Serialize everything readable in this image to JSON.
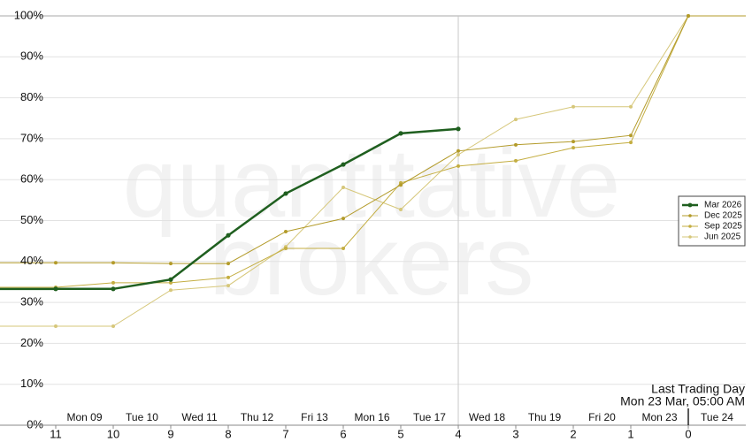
{
  "chart_data": {
    "type": "line",
    "watermark": [
      "quantitative",
      "brokers"
    ],
    "x": [
      11,
      10,
      9,
      8,
      7,
      6,
      5,
      4,
      3,
      2,
      1,
      0
    ],
    "xlim": [
      12,
      -1
    ],
    "xticks": [
      11,
      10,
      9,
      8,
      7,
      6,
      5,
      4,
      3,
      2,
      1,
      0
    ],
    "day_labels": [
      "Mon 09",
      "Tue 10",
      "Wed 11",
      "Thu 12",
      "Fri 13",
      "Mon 16",
      "Tue 17",
      "Wed 18",
      "Thu 19",
      "Fri 20",
      "Mon 23",
      "Tue 24"
    ],
    "cursor_x": 4,
    "annotation": [
      "Last Trading Day",
      "Mon 23 Mar, 05:00 AM"
    ],
    "ylim": [
      0,
      100
    ],
    "yticks": [
      {
        "value": 0,
        "label": "0%"
      },
      {
        "value": 10,
        "label": "10%"
      },
      {
        "value": 20,
        "label": "20%"
      },
      {
        "value": 30,
        "label": "30%"
      },
      {
        "value": 40,
        "label": "40%"
      },
      {
        "value": 50,
        "label": "50%"
      },
      {
        "value": 60,
        "label": "60%"
      },
      {
        "value": 70,
        "label": "70%"
      },
      {
        "value": 80,
        "label": "80%"
      },
      {
        "value": 90,
        "label": "90%"
      },
      {
        "value": 100,
        "label": "100%"
      }
    ],
    "grid": true,
    "legend": "right",
    "series": [
      {
        "name": "Mar 2026",
        "color": "#1f5f1f",
        "width": 2.5,
        "values": [
          33.3,
          33.3,
          35.6,
          46.4,
          56.6,
          63.7,
          71.3,
          72.4,
          null,
          null,
          null,
          null
        ]
      },
      {
        "name": "Dec 2025",
        "color": "#b39b2a",
        "width": 1,
        "values": [
          39.7,
          39.7,
          39.5,
          39.5,
          47.3,
          50.5,
          58.7,
          67.0,
          68.5,
          69.3,
          70.8,
          100
        ]
      },
      {
        "name": "Sep 2025",
        "color": "#c4ae42",
        "width": 1,
        "values": [
          33.7,
          34.8,
          34.8,
          36.1,
          43.2,
          43.2,
          59.2,
          63.3,
          64.6,
          67.8,
          69.1,
          100
        ]
      },
      {
        "name": "Jun 2025",
        "color": "#d6c77a",
        "width": 1,
        "values": [
          24.2,
          24.2,
          33.0,
          34.1,
          43.6,
          58.1,
          52.7,
          66.1,
          74.7,
          77.8,
          77.8,
          100
        ]
      }
    ]
  }
}
